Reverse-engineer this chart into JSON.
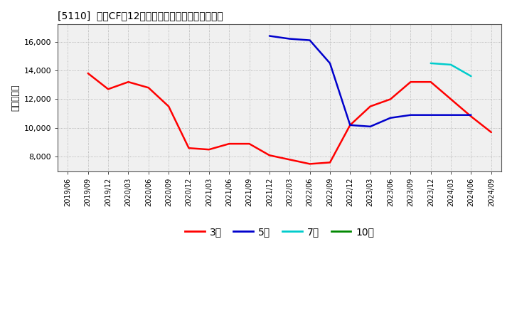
{
  "title": "[5110]  投資CFの12か月移動合計の標準偏差の推移",
  "ylabel": "（百万円）",
  "background_color": "#ffffff",
  "plot_bg_color": "#f0f0f0",
  "grid_color": "#888888",
  "ylim": [
    7000,
    17200
  ],
  "yticks": [
    8000,
    10000,
    12000,
    14000,
    16000
  ],
  "series": {
    "3year": {
      "color": "#ff0000",
      "label": "3年",
      "data": [
        [
          "2019/09",
          13800
        ],
        [
          "2019/12",
          12700
        ],
        [
          "2020/03",
          13200
        ],
        [
          "2020/06",
          12800
        ],
        [
          "2020/09",
          11500
        ],
        [
          "2020/12",
          8600
        ],
        [
          "2021/03",
          8500
        ],
        [
          "2021/06",
          8900
        ],
        [
          "2021/09",
          8900
        ],
        [
          "2021/12",
          8100
        ],
        [
          "2022/03",
          7800
        ],
        [
          "2022/06",
          7500
        ],
        [
          "2022/09",
          7600
        ],
        [
          "2022/12",
          10200
        ],
        [
          "2023/03",
          11500
        ],
        [
          "2023/06",
          12000
        ],
        [
          "2023/09",
          13200
        ],
        [
          "2023/12",
          13200
        ],
        [
          "2024/03",
          12000
        ],
        [
          "2024/06",
          10800
        ],
        [
          "2024/09",
          9700
        ]
      ]
    },
    "5year": {
      "color": "#0000cc",
      "label": "5年",
      "data": [
        [
          "2021/12",
          16400
        ],
        [
          "2022/03",
          16200
        ],
        [
          "2022/06",
          16100
        ],
        [
          "2022/09",
          14500
        ],
        [
          "2022/12",
          10200
        ],
        [
          "2023/03",
          10100
        ],
        [
          "2023/06",
          10700
        ],
        [
          "2023/09",
          10900
        ],
        [
          "2023/12",
          10900
        ],
        [
          "2024/03",
          10900
        ],
        [
          "2024/06",
          10900
        ]
      ]
    },
    "7year": {
      "color": "#00cccc",
      "label": "7年",
      "data": [
        [
          "2023/12",
          14500
        ],
        [
          "2024/03",
          14400
        ],
        [
          "2024/06",
          13600
        ]
      ]
    },
    "10year": {
      "color": "#008800",
      "label": "10年",
      "data": []
    }
  },
  "xtick_labels": [
    "2019/06",
    "2019/09",
    "2019/12",
    "2020/03",
    "2020/06",
    "2020/09",
    "2020/12",
    "2021/03",
    "2021/06",
    "2021/09",
    "2021/12",
    "2022/03",
    "2022/06",
    "2022/09",
    "2022/12",
    "2023/03",
    "2023/06",
    "2023/09",
    "2023/12",
    "2024/03",
    "2024/06",
    "2024/09"
  ]
}
